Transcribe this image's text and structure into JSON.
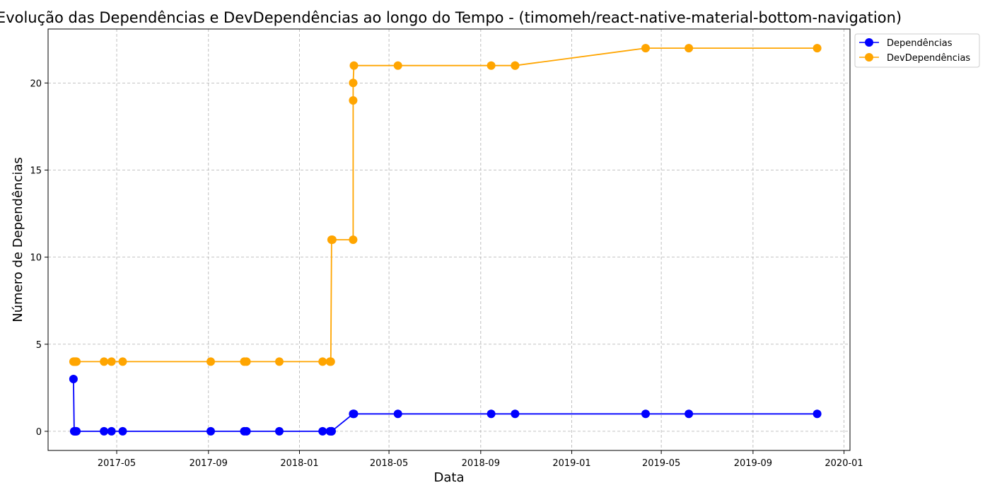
{
  "chart_data": {
    "type": "line",
    "title": "Evolução das Dependências e DevDependências ao longo do Tempo - (timomeh/react-native-material-bottom-navigation)",
    "xlabel": "Data",
    "ylabel": "Número de Dependências",
    "x_ticks": [
      "2017-05",
      "2017-09",
      "2018-01",
      "2018-05",
      "2018-09",
      "2019-01",
      "2019-05",
      "2019-09",
      "2020-01"
    ],
    "y_ticks": [
      "0",
      "5",
      "10",
      "15",
      "20"
    ],
    "xlim": [
      "2017-01-29",
      "2020-01-09"
    ],
    "ylim": [
      -1.1,
      23.1
    ],
    "grid": true,
    "legend_position": "outside-top-right",
    "x": [
      "2017-03-04",
      "2017-03-05",
      "2017-03-06",
      "2017-03-07",
      "2017-03-08",
      "2017-04-14",
      "2017-04-24",
      "2017-05-09",
      "2017-09-04",
      "2017-10-19",
      "2017-10-22",
      "2017-12-05",
      "2018-02-01",
      "2018-02-11",
      "2018-02-13",
      "2018-03-14",
      "2018-03-15",
      "2018-05-13",
      "2018-09-15",
      "2018-10-17",
      "2019-04-10",
      "2019-06-07",
      "2019-11-26"
    ],
    "series": [
      {
        "name": "Dependências",
        "color": "#0000ff",
        "values": [
          3,
          0,
          0,
          0,
          0,
          0,
          0,
          0,
          0,
          0,
          0,
          0,
          0,
          0,
          0,
          1,
          1,
          1,
          1,
          1,
          1,
          1,
          1
        ]
      },
      {
        "name": "DevDependências",
        "color": "#ffa500",
        "values": [
          4,
          4,
          4,
          4,
          4,
          4,
          4,
          4,
          4,
          4,
          4,
          4,
          4,
          4,
          11,
          11,
          21,
          21,
          21,
          21,
          22,
          22,
          22
        ]
      }
    ],
    "extra_points": [
      {
        "series": 0,
        "x": "2018-02-13",
        "y": 0
      },
      {
        "series": 1,
        "x": "2018-02-12",
        "y": 4
      },
      {
        "series": 1,
        "x": "2018-02-14",
        "y": 11
      },
      {
        "series": 1,
        "x": "2018-03-14",
        "y": 19
      },
      {
        "series": 1,
        "x": "2018-03-14",
        "y": 20
      },
      {
        "series": 1,
        "x": "2018-10-17",
        "y": 21
      }
    ]
  }
}
